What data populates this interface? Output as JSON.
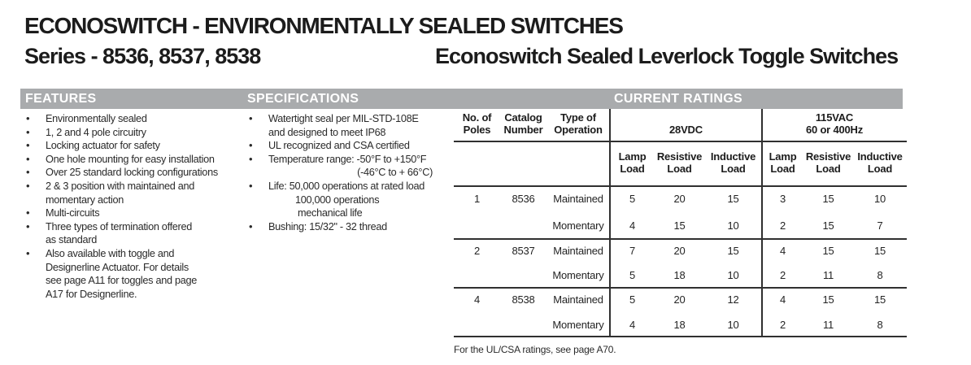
{
  "page": {
    "title": "ECONOSWITCH - ENVIRONMENTALLY SEALED SWITCHES",
    "series": "Series - 8536, 8537, 8538",
    "subtitle": "Econoswitch Sealed Leverlock Toggle Switches"
  },
  "features": {
    "header": "FEATURES",
    "items": [
      "Environmentally sealed",
      "1, 2 and 4 pole circuitry",
      "Locking actuator for safety",
      "One hole mounting for easy installation",
      "Over 25 standard locking configurations",
      "2 & 3 position with maintained and\nmomentary action",
      "Multi-circuits",
      "Three types of termination offered\nas standard",
      "Also available with toggle and\nDesignerline Actuator. For details\nsee page A11 for toggles and page\nA17 for Designerline."
    ]
  },
  "specifications": {
    "header": "SPECIFICATIONS",
    "watertight": "Watertight seal per MIL-STD-108E\nand designed to meet IP68",
    "ul_csa": "UL recognized and CSA certified",
    "temp_line1": "Temperature range: -50°F to +150°F",
    "temp_line2": "(-46°C to + 66°C)",
    "life_line1": "Life: 50,000 operations at rated load",
    "life_line2": "100,000 operations",
    "life_line3": "mechanical life",
    "bushing": "Bushing: 15/32\" - 32 thread"
  },
  "ratings": {
    "header": "CURRENT RATINGS",
    "columns": {
      "poles": "No. of\nPoles",
      "catalog": "Catalog\nNumber",
      "operation": "Type of\nOperation",
      "vdc_group": "28VDC",
      "vac_group": "115VAC\n60 or 400Hz",
      "lamp": "Lamp\nLoad",
      "resistive": "Resistive\nLoad",
      "inductive": "Inductive\nLoad"
    },
    "rows": [
      {
        "poles": "1",
        "catalog": "8536",
        "operation": "Maintained",
        "vdc": [
          "5",
          "20",
          "15"
        ],
        "vac": [
          "3",
          "15",
          "10"
        ]
      },
      {
        "poles": "",
        "catalog": "",
        "operation": "Momentary",
        "vdc": [
          "4",
          "15",
          "10"
        ],
        "vac": [
          "2",
          "15",
          "7"
        ]
      },
      {
        "poles": "2",
        "catalog": "8537",
        "operation": "Maintained",
        "vdc": [
          "7",
          "20",
          "15"
        ],
        "vac": [
          "4",
          "15",
          "15"
        ]
      },
      {
        "poles": "",
        "catalog": "",
        "operation": "Momentary",
        "vdc": [
          "5",
          "18",
          "10"
        ],
        "vac": [
          "2",
          "11",
          "8"
        ]
      },
      {
        "poles": "4",
        "catalog": "8538",
        "operation": "Maintained",
        "vdc": [
          "5",
          "20",
          "12"
        ],
        "vac": [
          "4",
          "15",
          "15"
        ]
      },
      {
        "poles": "",
        "catalog": "",
        "operation": "Momentary",
        "vdc": [
          "4",
          "18",
          "10"
        ],
        "vac": [
          "2",
          "11",
          "8"
        ]
      }
    ],
    "footnote": "For the UL/CSA ratings, see page A70."
  },
  "colors": {
    "section_bar": "#a9abad",
    "rule": "#303030",
    "text": "#222222"
  }
}
